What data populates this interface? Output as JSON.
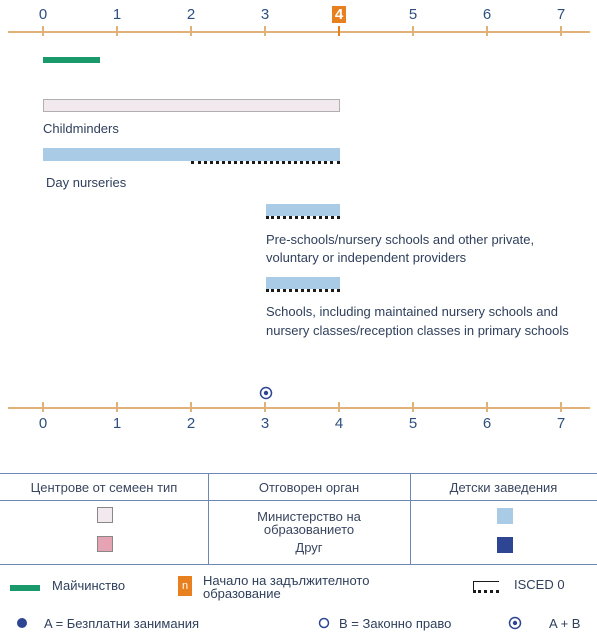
{
  "axis": {
    "ticks": [
      "0",
      "1",
      "2",
      "3",
      "4",
      "5",
      "6",
      "7"
    ],
    "highlight_index": 4
  },
  "bars": {
    "childminders": "Childminders",
    "day_nurseries": "Day nurseries",
    "preschools": "Pre-schools/nursery schools and other private, voluntary or independent providers",
    "preschools_line1": "Pre-schools/nursery schools and other private,",
    "preschools_line2": "voluntary or independent providers",
    "schools_line1": "Schools, including maintained nursery schools and",
    "schools_line2": "nursery classes/reception classes in primary schools"
  },
  "legend": {
    "col1": "Центрове от семеен тип",
    "col2": "Отговорен орган",
    "col3": "Детски заведения",
    "ministry_line1": "Министерство на",
    "ministry_line2": "образованието",
    "other": "Друг",
    "maternity": "Майчинство",
    "compulsory_line1": "Начало на задължителното",
    "compulsory_line2": "образование",
    "compulsory_icon_letter": "n",
    "isced": "ISCED 0",
    "free": "A = Безплатни занимания",
    "right": "B = Законно право",
    "both": "A + B"
  },
  "colors": {
    "axis": "#e1b278",
    "highlight": "#e8801f",
    "blue_bar": "#a9cbe6",
    "pink_bar": "#f1e9ee",
    "green_bar": "#1a9a6a",
    "dark_blue": "#2d4593",
    "pink_swatch": "#e6a3b4"
  }
}
